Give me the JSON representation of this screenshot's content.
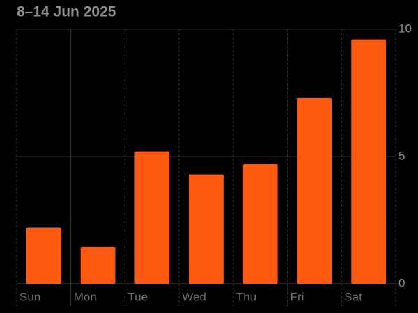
{
  "chart_data": {
    "type": "bar",
    "title": "8–14 Jun 2025",
    "categories": [
      "Sun",
      "Mon",
      "Tue",
      "Wed",
      "Thu",
      "Fri",
      "Sat"
    ],
    "values": [
      2.2,
      1.45,
      5.2,
      4.3,
      4.7,
      7.3,
      9.6
    ],
    "color": "#ff5a12",
    "ylim": [
      0,
      10
    ],
    "yticks": [
      0,
      5,
      10
    ],
    "grid": true
  }
}
